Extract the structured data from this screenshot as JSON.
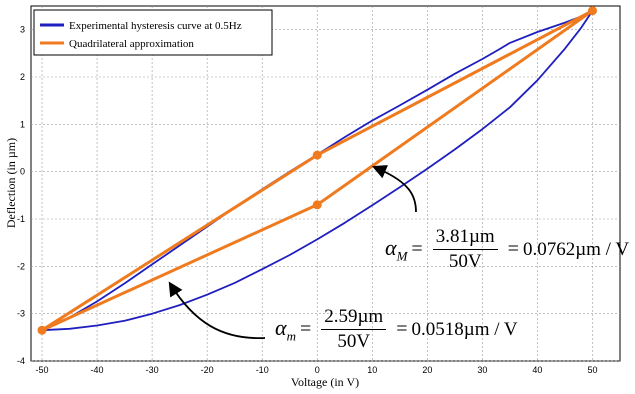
{
  "chart_data": {
    "type": "line",
    "xlabel": "Voltage (in V)",
    "ylabel": "Deflection (in µm)",
    "xlim": [
      -52,
      55
    ],
    "ylim": [
      -4,
      3.5
    ],
    "xticks": [
      -50,
      -40,
      -30,
      -20,
      -10,
      0,
      10,
      20,
      30,
      40,
      50
    ],
    "yticks": [
      -4,
      -3,
      -2,
      -1,
      0,
      1,
      2,
      3
    ],
    "grid": "dashed",
    "legend_position": "top-left",
    "series": [
      {
        "name": "Experimental hysteresis curve at 0.5Hz",
        "color": "#1f1fbf",
        "x": [
          -50,
          -45,
          -40,
          -35,
          -30,
          -25,
          -20,
          -15,
          -10,
          -5,
          0,
          5,
          10,
          15,
          20,
          25,
          30,
          35,
          40,
          45,
          48,
          50,
          48,
          45,
          40,
          35,
          33,
          30,
          25,
          20,
          15,
          10,
          5,
          0,
          -5,
          -10,
          -15,
          -20,
          -25,
          -30,
          -35,
          -40,
          -45,
          -50
        ],
        "y": [
          -3.35,
          -3.32,
          -3.25,
          -3.15,
          -3.0,
          -2.82,
          -2.6,
          -2.35,
          -2.06,
          -1.76,
          -1.43,
          -1.08,
          -0.71,
          -0.33,
          0.06,
          0.47,
          0.9,
          1.36,
          1.93,
          2.6,
          3.05,
          3.4,
          3.28,
          3.15,
          2.95,
          2.72,
          2.58,
          2.38,
          2.07,
          1.73,
          1.4,
          1.08,
          0.73,
          0.36,
          0.0,
          -0.37,
          -0.76,
          -1.16,
          -1.56,
          -1.96,
          -2.36,
          -2.74,
          -3.08,
          -3.35
        ]
      },
      {
        "name": "Quadrilateral approximation",
        "color": "#f07a1e",
        "x": [
          -50,
          0,
          50,
          0,
          -50
        ],
        "y": [
          -3.35,
          -0.7,
          3.4,
          0.35,
          -3.35
        ]
      }
    ],
    "annotations": [
      {
        "symbol": "α",
        "subscript": "M",
        "numerator": "3.81µm",
        "denominator": "50V",
        "result": "0.0762µm / V",
        "arrow_target": {
          "x": 10,
          "y": 0.15
        }
      },
      {
        "symbol": "α",
        "subscript": "m",
        "numerator": "2.59µm",
        "denominator": "50V",
        "result": "0.0518µm / V",
        "arrow_target": {
          "x": -27,
          "y": -2.3
        }
      }
    ]
  }
}
